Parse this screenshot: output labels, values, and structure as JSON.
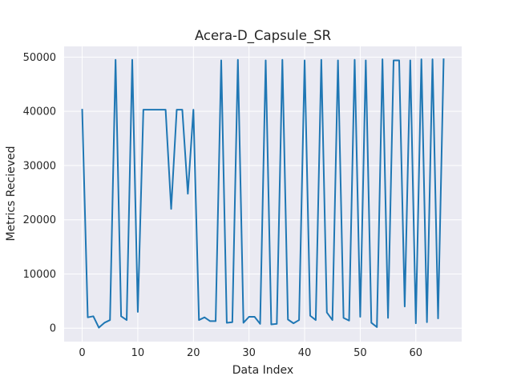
{
  "chart_data": {
    "type": "line",
    "title": "Acera-D_Capsule_SR",
    "xlabel": "Data Index",
    "ylabel": "Metrics Recieved",
    "xlim": [
      -3.25,
      68.25
    ],
    "ylim": [
      -2475,
      51975
    ],
    "x_ticks": [
      0,
      10,
      20,
      30,
      40,
      50,
      60
    ],
    "y_ticks": [
      0,
      10000,
      20000,
      30000,
      40000,
      50000
    ],
    "grid": true,
    "background": "#eaeaf2",
    "line_color": "#1f77b4",
    "series": [
      {
        "x": [
          0,
          1,
          2,
          3,
          4,
          5,
          6,
          7,
          8,
          9,
          10,
          11,
          12,
          13,
          14,
          15,
          16,
          17,
          18,
          19,
          20,
          21,
          22,
          23,
          24,
          25,
          26,
          27,
          28,
          29,
          30,
          31,
          32,
          33,
          34,
          35,
          36,
          37,
          38,
          39,
          40,
          41,
          42,
          43,
          44,
          45,
          46,
          47,
          48,
          49,
          50,
          51,
          52,
          53,
          54,
          55,
          56,
          57,
          58,
          59,
          60,
          61,
          62,
          63,
          64,
          65
        ],
        "values": [
          40300,
          2000,
          2200,
          100,
          1000,
          1500,
          49500,
          2200,
          1500,
          49500,
          3000,
          40300,
          40300,
          40300,
          40300,
          40300,
          22000,
          40300,
          40300,
          24800,
          40300,
          1500,
          2000,
          1300,
          1300,
          49400,
          1000,
          1100,
          49500,
          1000,
          2100,
          2100,
          800,
          49400,
          700,
          800,
          49500,
          1600,
          900,
          1500,
          49400,
          2300,
          1500,
          49500,
          2900,
          1500,
          49400,
          1900,
          1400,
          49500,
          2100,
          49400,
          1000,
          200,
          49600,
          1900,
          49400,
          49400,
          4000,
          49400,
          900,
          49600,
          1100,
          49600,
          1800,
          49600
        ]
      }
    ]
  }
}
